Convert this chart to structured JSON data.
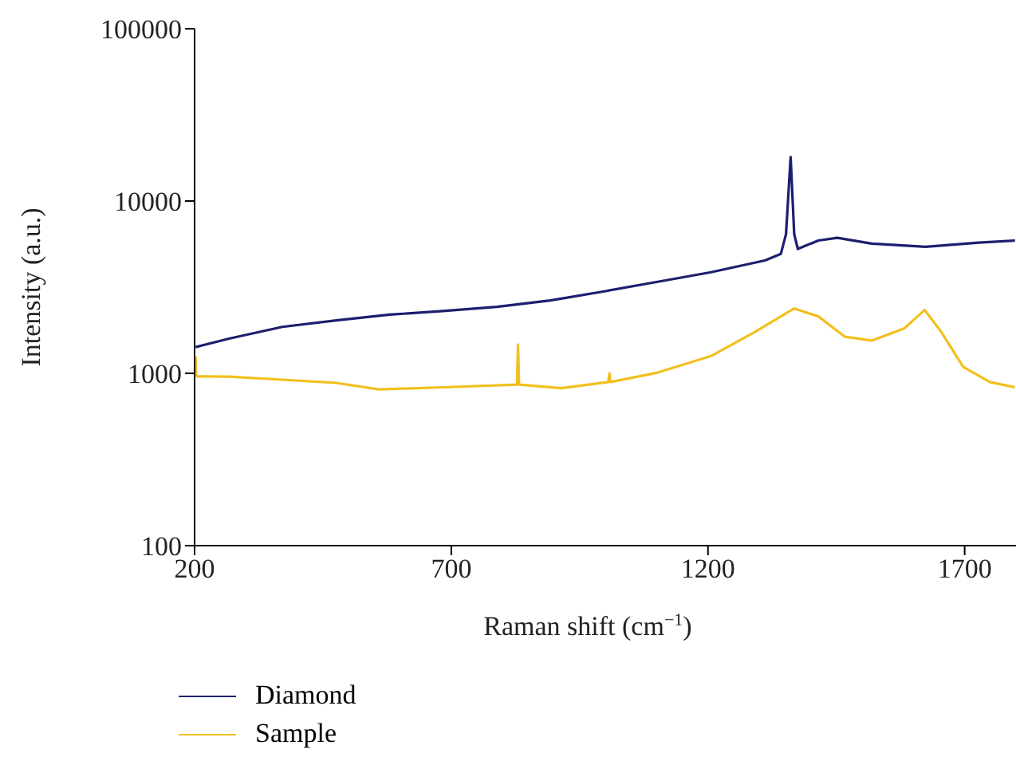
{
  "chart_data": {
    "type": "line",
    "xlabel": "Raman shift (cm$^{−1}$)",
    "ylabel": "Intensity (a.u.)",
    "xlim": [
      200,
      1800
    ],
    "xticks": [
      200,
      700,
      1200,
      1700
    ],
    "ylim": [
      100,
      100000
    ],
    "yticks": [
      100,
      1000,
      10000,
      100000
    ],
    "log": "y",
    "grid": false,
    "legend": "bottom",
    "marker": "none",
    "line_style": "solid",
    "series": [
      {
        "name": "Diamond",
        "color": "#1c1f6e",
        "x": [
          202,
          267,
          371,
          476,
          580,
          684,
          789,
          893,
          998,
          1102,
          1206,
          1311,
          1342,
          1352,
          1361,
          1368,
          1375,
          1415,
          1452,
          1519,
          1624,
          1728,
          1798
        ],
        "values": [
          1420,
          1590,
          1860,
          2030,
          2190,
          2300,
          2430,
          2650,
          2990,
          3400,
          3860,
          4520,
          4940,
          6420,
          18000,
          6420,
          5270,
          5900,
          6120,
          5660,
          5420,
          5740,
          5900
        ]
      },
      {
        "name": "Sample",
        "color": "#f2c01e",
        "x": [
          202,
          203,
          205,
          267,
          371,
          476,
          559,
          684,
          828,
          830,
          832,
          914,
          1006,
          1008,
          1010,
          1102,
          1206,
          1290,
          1368,
          1415,
          1467,
          1519,
          1582,
          1622,
          1655,
          1697,
          1749,
          1798
        ],
        "values": [
          1250,
          980,
          960,
          957,
          918,
          880,
          807,
          830,
          860,
          1470,
          860,
          820,
          890,
          1000,
          890,
          1010,
          1260,
          1730,
          2380,
          2140,
          1630,
          1550,
          1820,
          2330,
          1730,
          1090,
          890,
          830
        ]
      }
    ]
  }
}
